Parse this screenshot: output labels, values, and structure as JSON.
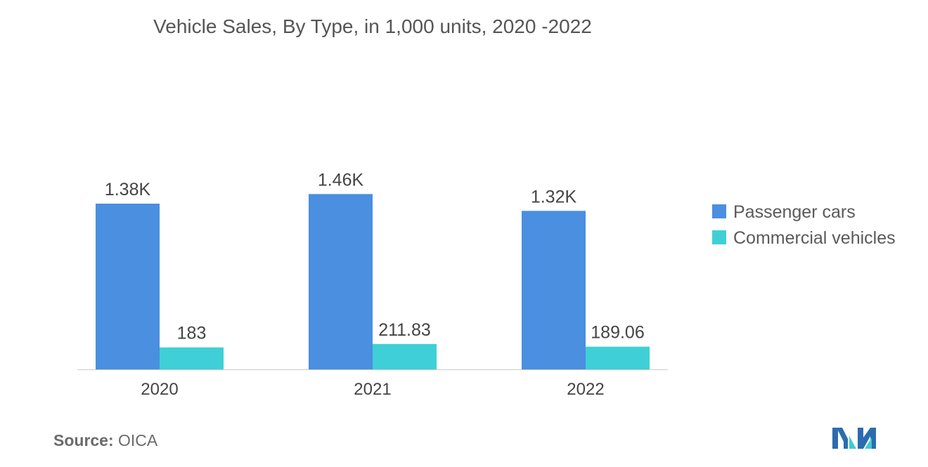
{
  "title": "Vehicle Sales, By Type, in 1,000 units, 2020 -2022",
  "source": {
    "label": "Source:",
    "value": "OICA"
  },
  "logo_icon": "mordor-intelligence-logo",
  "colors": {
    "passenger": "#4a8fe0",
    "commercial": "#3ed0d6",
    "text": "#444444",
    "axis": "#cccccc"
  },
  "chart_data": {
    "type": "bar",
    "categories": [
      "2020",
      "2021",
      "2022"
    ],
    "series": [
      {
        "name": "Passenger cars",
        "values": [
          1380,
          1460,
          1320
        ],
        "labels": [
          "1.38K",
          "1.46K",
          "1.32K"
        ]
      },
      {
        "name": "Commercial vehicles",
        "values": [
          183,
          211.83,
          189.06
        ],
        "labels": [
          "183",
          "211.83",
          "189.06"
        ]
      }
    ],
    "title": "Vehicle Sales, By Type, in 1,000 units, 2020 -2022",
    "legend_position": "right",
    "grid": false
  }
}
